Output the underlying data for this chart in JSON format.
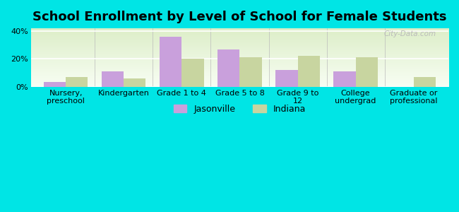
{
  "title": "School Enrollment by Level of School for Female Students",
  "categories": [
    "Nursery,\npreschool",
    "Kindergarten",
    "Grade 1 to 4",
    "Grade 5 to 8",
    "Grade 9 to\n12",
    "College\nundergrad",
    "Graduate or\nprofessional"
  ],
  "jasonville": [
    3.5,
    11.0,
    36.0,
    27.0,
    12.0,
    11.0,
    0.0
  ],
  "indiana": [
    7.0,
    6.0,
    20.0,
    21.0,
    22.0,
    21.0,
    7.0
  ],
  "jasonville_color": "#c9a0dc",
  "indiana_color": "#c8d5a0",
  "background_color": "#00e5e5",
  "ylim": [
    0,
    42
  ],
  "yticks": [
    0,
    20,
    40
  ],
  "ytick_labels": [
    "0%",
    "20%",
    "40%"
  ],
  "bar_width": 0.38,
  "title_fontsize": 13,
  "tick_fontsize": 8,
  "legend_fontsize": 9,
  "watermark": "City-Data.com"
}
